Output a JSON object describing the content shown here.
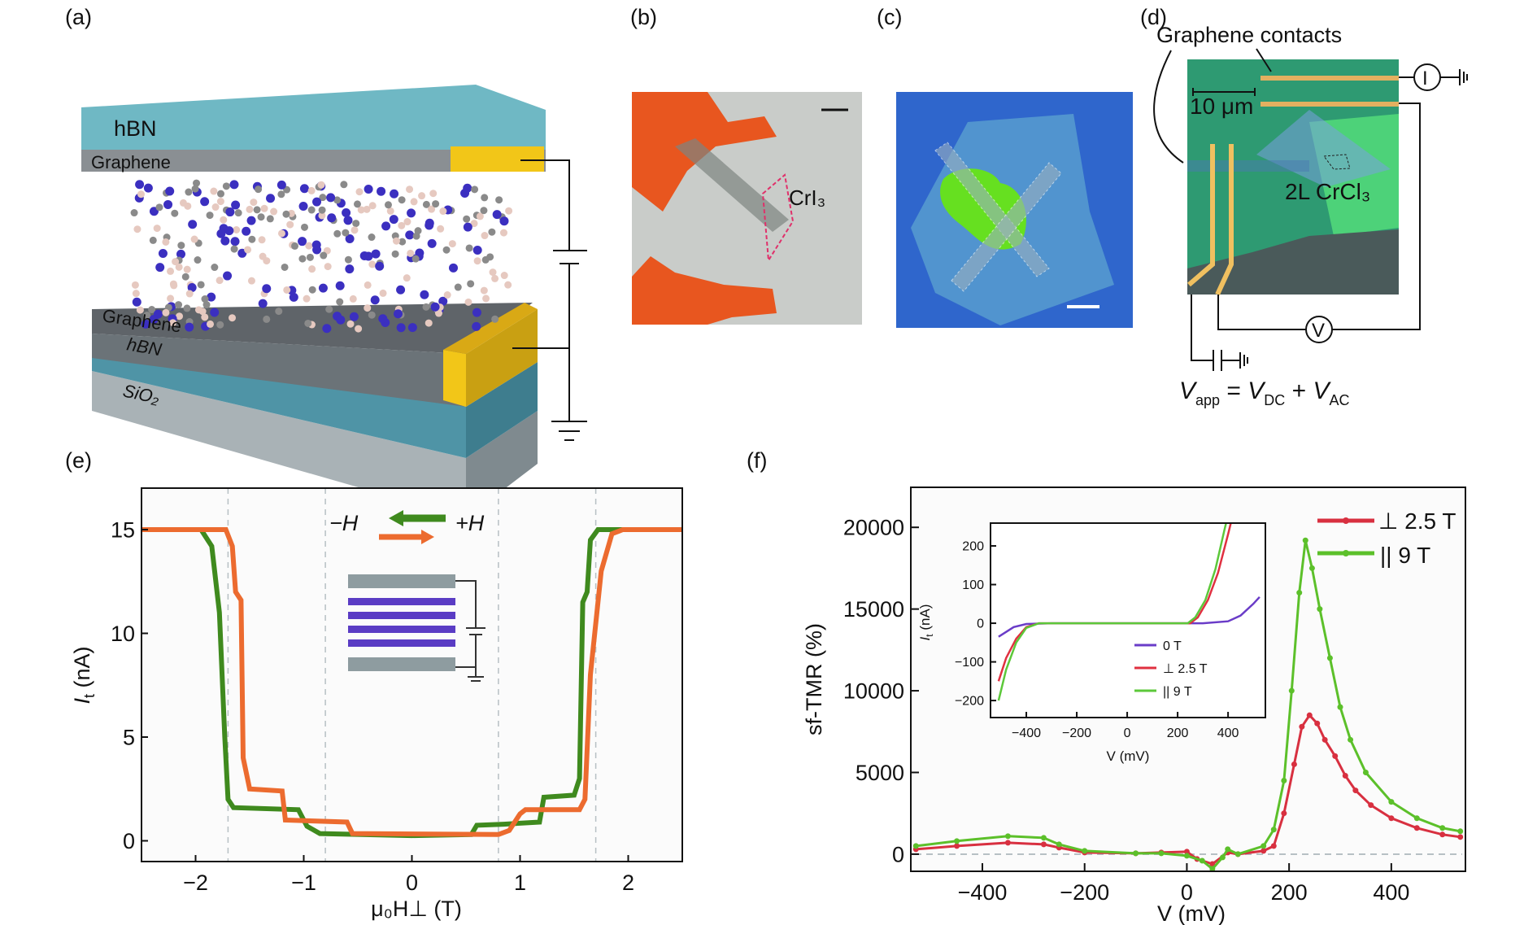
{
  "panel_labels": {
    "a": "(a)",
    "b": "(b)",
    "c": "(c)",
    "d": "(d)",
    "e": "(e)",
    "f": "(f)"
  },
  "panel_a": {
    "top_hbn": "hBN",
    "top_graphene": "Graphene",
    "bottom_graphene": "Graphene",
    "bottom_hbn": "hBN",
    "substrate": "SiO₂",
    "colors": {
      "hbn": "#6fb8c4",
      "graphene": "#8a8f93",
      "contact": "#f2c618",
      "cr": "#3b2fc0",
      "halide": "#e6c9c0"
    }
  },
  "panel_b": {
    "flake_label": "CrI₃",
    "colors": {
      "background": "#c9ccc9",
      "electrode": "#e8561f",
      "outline": "#e0306a"
    }
  },
  "panel_c": {
    "colors": {
      "background": "#2f66cc",
      "flake": "#5aa0d0",
      "crystal": "#66e020"
    }
  },
  "panel_d": {
    "callout": "Graphene contacts",
    "scale_bar": "10 μm",
    "flake_label": "2L CrCl₃",
    "current_meter": "I",
    "voltmeter": "V",
    "equation": {
      "v": "V",
      "app": "app",
      "eq": " = ",
      "v2": "V",
      "dc": "DC",
      "plus": " + ",
      "v3": "V",
      "ac": "AC"
    }
  },
  "chart_data": [
    {
      "id": "e",
      "type": "line",
      "xlabel": "μ₀H⊥ (T)",
      "ylabel_main": "I",
      "ylabel_sub": "t",
      "ylabel_unit": " (nA)",
      "xlim": [
        -2.5,
        2.5
      ],
      "ylim": [
        -1,
        17
      ],
      "xticks": [
        -2,
        -1,
        0,
        1,
        2
      ],
      "xtick_labels": [
        "−2",
        "−1",
        "0",
        "1",
        "2"
      ],
      "yticks": [
        0,
        5,
        10,
        15
      ],
      "ytick_labels": [
        "0",
        "5",
        "10",
        "15"
      ],
      "vlines": [
        -1.7,
        -0.8,
        0.8,
        1.7
      ],
      "legend": {
        "minus": "−H",
        "plus": "+H"
      },
      "series": [
        {
          "name": "−H",
          "color": "#3f8a1e",
          "points": [
            [
              -2.5,
              15
            ],
            [
              -1.95,
              15
            ],
            [
              -1.85,
              14.2
            ],
            [
              -1.78,
              11
            ],
            [
              -1.73,
              5
            ],
            [
              -1.7,
              2
            ],
            [
              -1.65,
              1.6
            ],
            [
              -1.05,
              1.5
            ],
            [
              -0.97,
              0.7
            ],
            [
              -0.85,
              0.35
            ],
            [
              0,
              0.25
            ],
            [
              0.55,
              0.3
            ],
            [
              0.6,
              0.75
            ],
            [
              0.85,
              0.8
            ],
            [
              1.18,
              0.9
            ],
            [
              1.22,
              2.1
            ],
            [
              1.5,
              2.2
            ],
            [
              1.55,
              3
            ],
            [
              1.58,
              11.5
            ],
            [
              1.62,
              12
            ],
            [
              1.65,
              14.5
            ],
            [
              1.72,
              15
            ],
            [
              2.5,
              15
            ]
          ]
        },
        {
          "name": "+H",
          "color": "#ec6b2f",
          "points": [
            [
              -2.5,
              15
            ],
            [
              -1.72,
              15
            ],
            [
              -1.66,
              14.2
            ],
            [
              -1.63,
              12
            ],
            [
              -1.58,
              11.6
            ],
            [
              -1.56,
              4
            ],
            [
              -1.5,
              2.5
            ],
            [
              -1.2,
              2.4
            ],
            [
              -1.17,
              1
            ],
            [
              -0.6,
              0.9
            ],
            [
              -0.55,
              0.35
            ],
            [
              0.8,
              0.3
            ],
            [
              0.9,
              0.5
            ],
            [
              1.0,
              1.3
            ],
            [
              1.05,
              1.5
            ],
            [
              1.55,
              1.5
            ],
            [
              1.6,
              2
            ],
            [
              1.65,
              8
            ],
            [
              1.75,
              13
            ],
            [
              1.85,
              14.8
            ],
            [
              1.95,
              15
            ],
            [
              2.5,
              15
            ]
          ]
        }
      ]
    },
    {
      "id": "f",
      "type": "line",
      "xlabel": "V (mV)",
      "ylabel": "sf-TMR (%)",
      "xlim": [
        -540,
        545
      ],
      "ylim": [
        -1050,
        22450
      ],
      "xticks": [
        -400,
        -200,
        0,
        200,
        400
      ],
      "xtick_labels": [
        "−400",
        "−200",
        "0",
        "200",
        "400"
      ],
      "yticks": [
        0,
        5000,
        10000,
        15000,
        20000
      ],
      "ytick_labels": [
        "0",
        "5000",
        "10000",
        "15000",
        "20000"
      ],
      "legend_position": "top-right",
      "series": [
        {
          "name": "⊥  2.5 T",
          "color": "#d83040",
          "points": [
            [
              -530,
              300
            ],
            [
              -450,
              500
            ],
            [
              -350,
              700
            ],
            [
              -280,
              600
            ],
            [
              -250,
              400
            ],
            [
              -200,
              100
            ],
            [
              -100,
              50
            ],
            [
              -50,
              100
            ],
            [
              0,
              150
            ],
            [
              20,
              -300
            ],
            [
              50,
              -600
            ],
            [
              80,
              100
            ],
            [
              100,
              0
            ],
            [
              150,
              200
            ],
            [
              170,
              500
            ],
            [
              190,
              2500
            ],
            [
              210,
              5500
            ],
            [
              225,
              7800
            ],
            [
              240,
              8500
            ],
            [
              255,
              8000
            ],
            [
              270,
              7000
            ],
            [
              290,
              6000
            ],
            [
              310,
              4800
            ],
            [
              330,
              3900
            ],
            [
              360,
              3000
            ],
            [
              400,
              2200
            ],
            [
              450,
              1600
            ],
            [
              500,
              1200
            ],
            [
              535,
              1050
            ]
          ]
        },
        {
          "name": "|| 9 T",
          "color": "#5cc02a",
          "points": [
            [
              -530,
              500
            ],
            [
              -450,
              800
            ],
            [
              -350,
              1100
            ],
            [
              -280,
              1000
            ],
            [
              -250,
              600
            ],
            [
              -200,
              200
            ],
            [
              -100,
              50
            ],
            [
              -50,
              50
            ],
            [
              0,
              -100
            ],
            [
              30,
              -400
            ],
            [
              50,
              -900
            ],
            [
              70,
              -200
            ],
            [
              80,
              300
            ],
            [
              100,
              0
            ],
            [
              150,
              500
            ],
            [
              170,
              1500
            ],
            [
              190,
              4500
            ],
            [
              205,
              10000
            ],
            [
              220,
              16000
            ],
            [
              232,
              19200
            ],
            [
              245,
              17500
            ],
            [
              260,
              15000
            ],
            [
              280,
              12000
            ],
            [
              300,
              9000
            ],
            [
              320,
              7000
            ],
            [
              350,
              5000
            ],
            [
              400,
              3200
            ],
            [
              450,
              2200
            ],
            [
              500,
              1600
            ],
            [
              535,
              1400
            ]
          ]
        }
      ]
    },
    {
      "id": "f-inset",
      "type": "line",
      "xlabel": "V (mV)",
      "ylabel_main": "I",
      "ylabel_sub": "t",
      "ylabel_unit": " (nA)",
      "xlim": [
        -542,
        548
      ],
      "ylim": [
        -244,
        259
      ],
      "xticks": [
        -400,
        -200,
        0,
        200,
        400
      ],
      "xtick_labels": [
        "−400",
        "−200",
        "0",
        "200",
        "400"
      ],
      "yticks": [
        -200,
        -100,
        0,
        100,
        200
      ],
      "ytick_labels": [
        "−200",
        "−100",
        "0",
        "100",
        "200"
      ],
      "legend_position": "lower-right",
      "series": [
        {
          "name": "0 T",
          "color": "#6a3cc8",
          "points": [
            [
              -510,
              -35
            ],
            [
              -450,
              -10
            ],
            [
              -400,
              -2
            ],
            [
              -300,
              0
            ],
            [
              300,
              0
            ],
            [
              400,
              5
            ],
            [
              450,
              20
            ],
            [
              500,
              50
            ],
            [
              525,
              68
            ]
          ]
        },
        {
          "name": "⊥  2.5 T",
          "color": "#e03040",
          "points": [
            [
              -510,
              -150
            ],
            [
              -480,
              -90
            ],
            [
              -440,
              -40
            ],
            [
              -400,
              -10
            ],
            [
              -350,
              0
            ],
            [
              250,
              0
            ],
            [
              280,
              15
            ],
            [
              320,
              60
            ],
            [
              360,
              130
            ],
            [
              400,
              230
            ],
            [
              415,
              270
            ]
          ]
        },
        {
          "name": "|| 9 T",
          "color": "#5cc83a",
          "points": [
            [
              -510,
              -200
            ],
            [
              -480,
              -120
            ],
            [
              -440,
              -50
            ],
            [
              -400,
              -12
            ],
            [
              -350,
              0
            ],
            [
              240,
              0
            ],
            [
              270,
              15
            ],
            [
              310,
              60
            ],
            [
              350,
              140
            ],
            [
              385,
              240
            ],
            [
              398,
              275
            ]
          ]
        }
      ]
    }
  ]
}
